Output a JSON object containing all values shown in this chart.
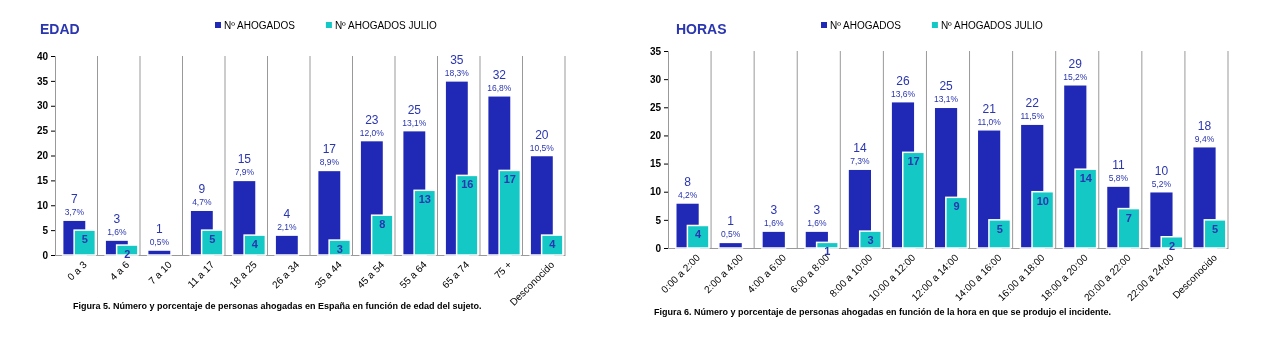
{
  "chart_data": [
    {
      "type": "bar",
      "title": "EDAD",
      "categories": [
        "0 a 3",
        "4 a 6",
        "7 a 10",
        "11 a 17",
        "18 a 25",
        "26 a 34",
        "35 a 44",
        "45 a 54",
        "55 a 64",
        "65 a 74",
        "75 +",
        "Desconocido"
      ],
      "series": [
        {
          "name": "Nº AHOGADOS",
          "color": "#2029b5",
          "values": [
            7,
            3,
            1,
            9,
            15,
            4,
            17,
            23,
            25,
            35,
            32,
            20
          ]
        },
        {
          "name": "Nº AHOGADOS JULIO",
          "color": "#13c8c5",
          "values": [
            5,
            2,
            null,
            5,
            4,
            null,
            3,
            8,
            13,
            16,
            17,
            4
          ]
        }
      ],
      "ylim": [
        0,
        40
      ],
      "yticks": [
        0,
        5,
        10,
        15,
        20,
        25,
        30,
        35,
        40
      ],
      "grid": "x",
      "legend": "top",
      "data_labels": true,
      "annotations": [
        "Figura 5. Número y porcentaje de personas ahogadas en España en función de edad del sujeto.",
        {
          "text": "3,7%",
          "x": "0 a 3",
          "y": 7
        },
        {
          "text": "1,6%",
          "x": "4 a 6",
          "y": 3
        },
        {
          "text": "0,5%",
          "x": "7 a 10",
          "y": 1
        },
        {
          "text": "4,7%",
          "x": "11 a 17",
          "y": 9
        },
        {
          "text": "7,9%",
          "x": "18 a 25",
          "y": 15
        },
        {
          "text": "2,1%",
          "x": "26 a 34",
          "y": 4
        },
        {
          "text": "8,9%",
          "x": "35 a 44",
          "y": 17
        },
        {
          "text": "12,0%",
          "x": "45 a 54",
          "y": 23
        },
        {
          "text": "13,1%",
          "x": "55 a 64",
          "y": 25
        },
        {
          "text": "18,3%",
          "x": "65 a 74",
          "y": 35
        },
        {
          "text": "16,8%",
          "x": "75 +",
          "y": 32
        },
        {
          "text": "10,5%",
          "x": "Desconocido",
          "y": 20
        }
      ]
    },
    {
      "type": "bar",
      "title": "HORAS",
      "categories": [
        "0:00 a 2:00",
        "2:00 a 4:00",
        "4:00 a 6:00",
        "6:00 a 8:00",
        "8:00 a 10:00",
        "10:00 a 12:00",
        "12:00 a 14:00",
        "14:00 a 16:00",
        "16:00 a 18:00",
        "18:00 a 20:00",
        "20:00 a 22:00",
        "22:00 a 24:00",
        "Desconocido"
      ],
      "series": [
        {
          "name": "Nº AHOGADOS",
          "color": "#2029b5",
          "values": [
            8,
            1,
            3,
            3,
            14,
            26,
            25,
            21,
            22,
            29,
            11,
            10,
            18
          ]
        },
        {
          "name": "Nº AHOGADOS JULIO",
          "color": "#13c8c5",
          "values": [
            4,
            null,
            null,
            1,
            3,
            17,
            9,
            5,
            10,
            14,
            7,
            2,
            5
          ]
        }
      ],
      "ylim": [
        0,
        35
      ],
      "yticks": [
        0,
        5,
        10,
        15,
        20,
        25,
        30,
        35
      ],
      "grid": "x",
      "legend": "top",
      "data_labels": true,
      "annotations": [
        "Figura 6. Número y porcentaje de personas ahogadas en función de la hora en que se produjo el incidente.",
        {
          "text": "4,2%",
          "x": "0:00 a 2:00",
          "y": 8
        },
        {
          "text": "0,5%",
          "x": "2:00 a 4:00",
          "y": 1
        },
        {
          "text": "1,6%",
          "x": "4:00 a 6:00",
          "y": 3
        },
        {
          "text": "1,6%",
          "x": "6:00 a 8:00",
          "y": 3
        },
        {
          "text": "7,3%",
          "x": "8:00 a 10:00",
          "y": 14
        },
        {
          "text": "13,6%",
          "x": "10:00 a 12:00",
          "y": 26
        },
        {
          "text": "13,1%",
          "x": "12:00 a 14:00",
          "y": 25
        },
        {
          "text": "11,0%",
          "x": "14:00 a 16:00",
          "y": 21
        },
        {
          "text": "11,5%",
          "x": "16:00 a 18:00",
          "y": 22
        },
        {
          "text": "15,2%",
          "x": "18:00 a 20:00",
          "y": 29
        },
        {
          "text": "5,8%",
          "x": "20:00 a 22:00",
          "y": 11
        },
        {
          "text": "5,2%",
          "x": "22:00 a 24:00",
          "y": 10
        },
        {
          "text": "9,4%",
          "x": "Desconocido",
          "y": 18
        }
      ]
    }
  ]
}
